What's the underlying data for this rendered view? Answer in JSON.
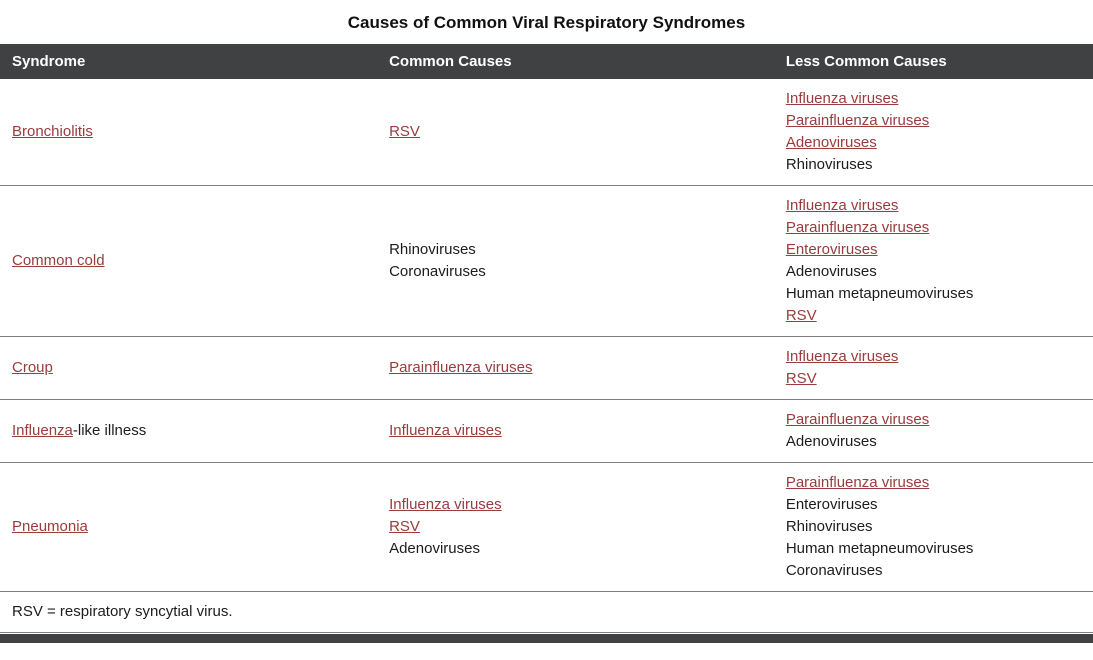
{
  "title": "Causes of Common Viral Respiratory Syndromes",
  "colors": {
    "header_bg": "#404142",
    "link": "#9a3b3c",
    "row_border": "#7f7f7f"
  },
  "table": {
    "columns": [
      "Syndrome",
      "Common Causes",
      "Less Common Causes"
    ],
    "rows": [
      {
        "syndrome": [
          {
            "text": "Bronchiolitis",
            "link": true
          }
        ],
        "common": [
          {
            "text": "RSV",
            "link": true
          }
        ],
        "less_common": [
          {
            "text": "Influenza viruses",
            "link": true
          },
          {
            "text": "Parainfluenza viruses",
            "link": true
          },
          {
            "text": "Adenoviruses",
            "link": true
          },
          {
            "text": "Rhinoviruses",
            "link": false
          }
        ]
      },
      {
        "syndrome": [
          {
            "text": "Common cold",
            "link": true
          }
        ],
        "common": [
          {
            "text": "Rhinoviruses",
            "link": false
          },
          {
            "text": "Coronaviruses",
            "link": false
          }
        ],
        "less_common": [
          {
            "text": "Influenza viruses",
            "link": true
          },
          {
            "text": "Parainfluenza viruses",
            "link": true
          },
          {
            "text": "Enteroviruses",
            "link": true
          },
          {
            "text": "Adenoviruses",
            "link": false
          },
          {
            "text": "Human metapneumoviruses",
            "link": false
          },
          {
            "text": "RSV",
            "link": true
          }
        ]
      },
      {
        "syndrome": [
          {
            "text": "Croup",
            "link": true
          }
        ],
        "common": [
          {
            "text": "Parainfluenza viruses",
            "link": true
          }
        ],
        "less_common": [
          {
            "text": "Influenza viruses",
            "link": true
          },
          {
            "text": "RSV",
            "link": true
          }
        ]
      },
      {
        "syndrome": [
          {
            "text": "Influenza",
            "link": true
          },
          {
            "text": "-like illness",
            "link": false
          }
        ],
        "common": [
          {
            "text": "Influenza viruses",
            "link": true
          }
        ],
        "less_common": [
          {
            "text": "Parainfluenza viruses",
            "link": true
          },
          {
            "text": "Adenoviruses",
            "link": false
          }
        ]
      },
      {
        "syndrome": [
          {
            "text": "Pneumonia",
            "link": true
          }
        ],
        "common": [
          {
            "text": "Influenza viruses",
            "link": true
          },
          {
            "text": "RSV",
            "link": true
          },
          {
            "text": "Adenoviruses",
            "link": false
          }
        ],
        "less_common": [
          {
            "text": "Parainfluenza viruses",
            "link": true
          },
          {
            "text": "Enteroviruses",
            "link": false
          },
          {
            "text": "Rhinoviruses",
            "link": false
          },
          {
            "text": "Human metapneumoviruses",
            "link": false
          },
          {
            "text": "Coronaviruses",
            "link": false
          }
        ]
      }
    ],
    "footnote": "RSV = respiratory syncytial virus."
  }
}
